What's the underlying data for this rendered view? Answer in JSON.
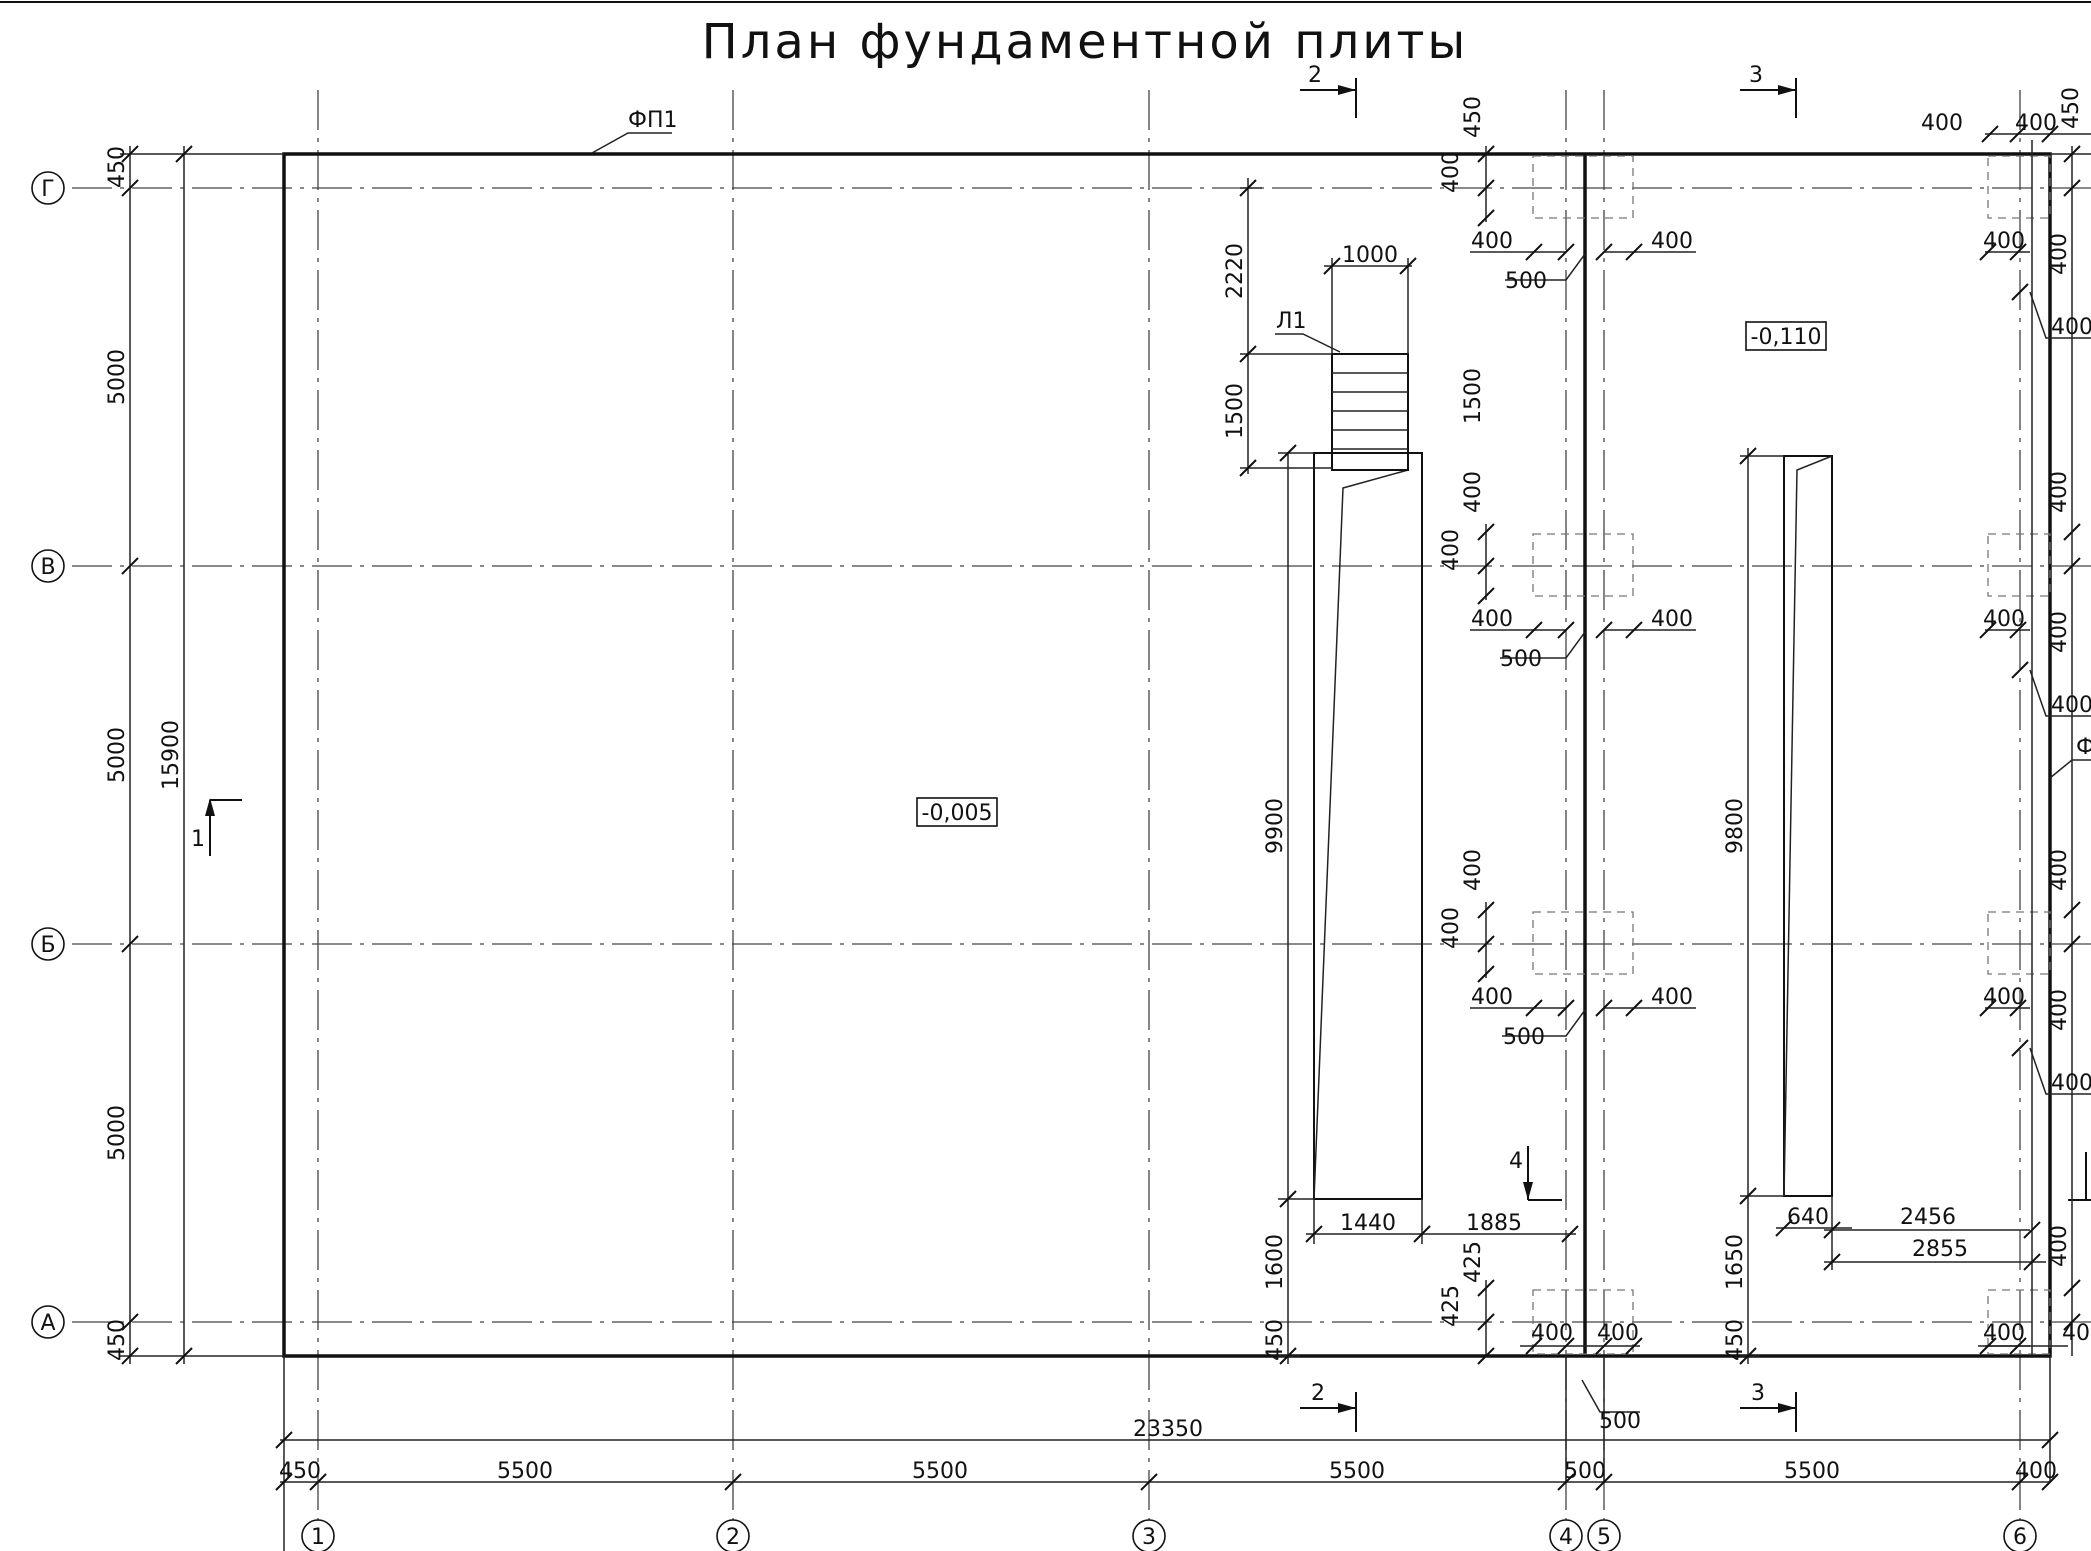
{
  "title": "План фундаментной плиты",
  "axes": {
    "vertical": [
      "1",
      "2",
      "3",
      "4",
      "5",
      "6"
    ],
    "horizontal": [
      "Г",
      "В",
      "Б",
      "А"
    ]
  },
  "levels": {
    "main": "-0,005",
    "right": "-0,110"
  },
  "marks": {
    "plate": "ФП1",
    "plate_partial": "Ф",
    "stair": "Л1"
  },
  "sections": {
    "s1": "1",
    "s2": "2",
    "s3": "3",
    "s4": "4"
  },
  "dims": {
    "d23350": "23350",
    "d5500": "5500",
    "d450": "450",
    "d500": "500",
    "d400": "400",
    "d400_cut": "40",
    "d15900": "15900",
    "d5000": "5000",
    "d2220": "2220",
    "d1500": "1500",
    "d1000": "1000",
    "d9900": "9900",
    "d9800": "9800",
    "d1600": "1600",
    "d1650": "1650",
    "d1440": "1440",
    "d1885": "1885",
    "d425": "425",
    "d640": "640",
    "d2456": "2456",
    "d2855": "2855"
  }
}
